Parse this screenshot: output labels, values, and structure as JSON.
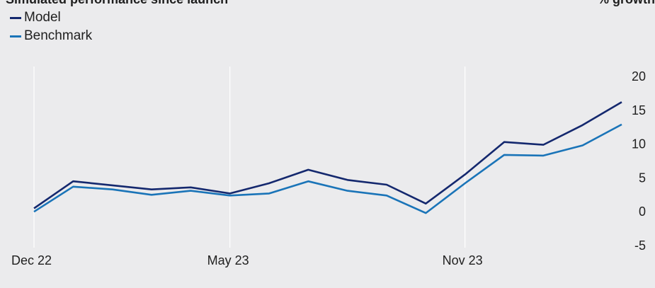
{
  "chart_data": {
    "type": "line",
    "title": "Simulated performance since launch",
    "unit_label": "% growth",
    "x": [
      "Dec 22",
      "Jan 23",
      "Feb 23",
      "Mar 23",
      "Apr 23",
      "May 23",
      "Jun 23",
      "Jul 23",
      "Aug 23",
      "Sep 23",
      "Oct 23",
      "Nov 23",
      "Dec 23",
      "Jan 24",
      "Feb 24",
      "Mar 24"
    ],
    "x_tick_labels": [
      "Dec 22",
      "May 23",
      "Nov 23"
    ],
    "y_ticks": [
      20,
      15,
      10,
      5,
      0,
      -5
    ],
    "ylim": [
      -5,
      20
    ],
    "grid": "vertical at labelled x ticks",
    "legend_position": "top-left",
    "series": [
      {
        "name": "Model",
        "color": "#14286e",
        "values": [
          0.5,
          4.5,
          3.9,
          3.3,
          3.6,
          2.7,
          4.2,
          6.2,
          4.7,
          4.0,
          1.2,
          5.5,
          10.3,
          9.9,
          12.8,
          16.2
        ]
      },
      {
        "name": "Benchmark",
        "color": "#1a74b8",
        "values": [
          0.0,
          3.7,
          3.3,
          2.5,
          3.1,
          2.4,
          2.7,
          4.5,
          3.1,
          2.4,
          -0.2,
          4.2,
          8.4,
          8.3,
          9.8,
          12.9
        ]
      }
    ]
  }
}
